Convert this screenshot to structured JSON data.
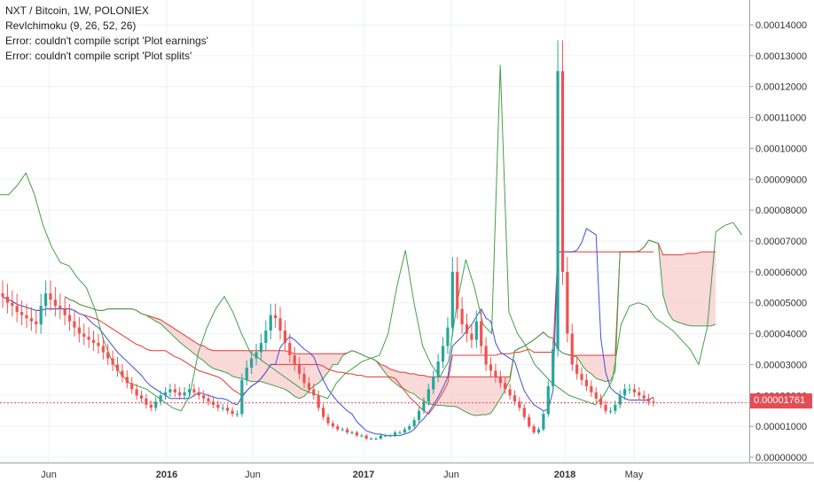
{
  "legend": {
    "title": "NXT / Bitcoin, 1W, POLONIEX",
    "indicator": "RevIchimoku (9, 26, 52, 26)",
    "error1": "Error: couldn't compile script 'Plot earnings'",
    "error2": "Error: couldn't compile script 'Plot splits'"
  },
  "last_price": "0.00001761",
  "colors": {
    "up": "#26a69a",
    "down": "#ef5350",
    "conversion": "#3f51d9",
    "base": "#e53935",
    "lagging": "#43a047",
    "cloud_bear": "#f8cccc",
    "cloud_bull": "#c8e6c9",
    "grid": "#eef0f3"
  },
  "chart_data": {
    "type": "candlestick",
    "symbol": "NXT / Bitcoin",
    "interval": "1W",
    "exchange": "POLONIEX",
    "x_labels": [
      "Jun",
      "2016",
      "Jun",
      "2017",
      "Jun",
      "2018",
      "May"
    ],
    "y_ticks": [
      "0.00014000",
      "0.00013000",
      "0.00012000",
      "0.00011000",
      "0.00010000",
      "0.00009000",
      "0.00008000",
      "0.00007000",
      "0.00006000",
      "0.00005000",
      "0.00004000",
      "0.00003000",
      "0.00002000",
      "0.00001000",
      "0.00000000"
    ],
    "ylim": [
      0,
      0.000145
    ],
    "last_price": 1.761e-05,
    "close_series": [
      5.2e-05,
      5e-05,
      4.9e-05,
      4.7e-05,
      4.6e-05,
      4.5e-05,
      4.4e-05,
      4.3e-05,
      4.9e-05,
      5.3e-05,
      5.1e-05,
      4.9e-05,
      4.8e-05,
      4.6e-05,
      4.4e-05,
      4.2e-05,
      4e-05,
      3.9e-05,
      3.8e-05,
      3.7e-05,
      3.6e-05,
      3.4e-05,
      3.2e-05,
      3e-05,
      2.8e-05,
      2.6e-05,
      2.4e-05,
      2.2e-05,
      2e-05,
      1.9e-05,
      1.7e-05,
      1.6e-05,
      1.8e-05,
      2e-05,
      2.1e-05,
      2.2e-05,
      2.1e-05,
      2e-05,
      2.1e-05,
      2.2e-05,
      2.1e-05,
      2e-05,
      1.9e-05,
      1.8e-05,
      1.7e-05,
      1.6e-05,
      1.6e-05,
      1.5e-05,
      1.4e-05,
      1.4e-05,
      2.5e-05,
      2.9e-05,
      3.2e-05,
      3.4e-05,
      3.7e-05,
      4.1e-05,
      4.6e-05,
      4.5e-05,
      4.1e-05,
      3.7e-05,
      3.3e-05,
      3e-05,
      2.7e-05,
      2.4e-05,
      2.2e-05,
      2e-05,
      1.6e-05,
      1.3e-05,
      1.1e-05,
      1e-05,
      9e-06,
      9e-06,
      8e-06,
      8e-06,
      7e-06,
      7e-06,
      6e-06,
      6e-06,
      6e-06,
      7e-06,
      7e-06,
      7e-06,
      8e-06,
      8e-06,
      9e-06,
      1e-05,
      1.2e-05,
      1.5e-05,
      1.8e-05,
      2.2e-05,
      2.6e-05,
      3.1e-05,
      3.6e-05,
      4.2e-05,
      6e-05,
      4.8e-05,
      4.3e-05,
      4e-05,
      3.8e-05,
      4.4e-05,
      3.6e-05,
      3e-05,
      2.8e-05,
      2.6e-05,
      2.4e-05,
      2.2e-05,
      2e-05,
      1.8e-05,
      1.6e-05,
      1.3e-05,
      1e-05,
      8e-06,
      9e-06,
      1.4e-05,
      2.3e-05,
      3.5e-05,
      0.000125,
      6e-05,
      4e-05,
      3e-05,
      2.7e-05,
      2.5e-05,
      2.3e-05,
      2.1e-05,
      1.9e-05,
      1.7e-05,
      1.5e-05,
      1.5e-05,
      1.7e-05,
      2e-05,
      2.2e-05,
      2.2e-05,
      2.1e-05,
      2e-05,
      1.9e-05,
      1.8e-05,
      1.76e-05
    ],
    "lagging_span": [
      8.5e-05,
      8.5e-05,
      8.8e-05,
      9.2e-05,
      8.5e-05,
      7.5e-05,
      6.8e-05,
      6.3e-05,
      6.2e-05,
      5.8e-05,
      5.5e-05,
      4.8e-05,
      3.8e-05,
      3.1e-05,
      2.7e-05,
      2.4e-05,
      2.3e-05,
      2.2e-05,
      2e-05,
      1.8e-05,
      1.6e-05,
      1.5e-05,
      2e-05,
      3.4e-05,
      4.2e-05,
      4.8e-05,
      5.2e-05,
      4.7e-05,
      4e-05,
      3.4e-05,
      3.2e-05,
      3e-05,
      2.8e-05,
      2.6e-05,
      2.4e-05,
      2.2e-05,
      2.1e-05,
      2e-05,
      1.9e-05,
      2.4e-05,
      2.7e-05,
      2.9e-05,
      3.1e-05,
      3.2e-05,
      3.3e-05,
      4e-05,
      5.5e-05,
      6.7e-05,
      5e-05,
      3.6e-05,
      3e-05,
      2.6e-05,
      3.1e-05,
      5e-05,
      6.4e-05,
      5.5e-05,
      4.3e-05,
      4e-05,
      0.000127,
      4.7e-05,
      4e-05,
      3.6e-05,
      3e-05,
      2.7e-05,
      2.4e-05,
      2.2e-05,
      2e-05,
      1.9e-05,
      1.8e-05,
      1.7e-05,
      2e-05,
      2.5e-05,
      4.3e-05,
      4.9e-05,
      5e-05,
      4.9e-05,
      4.5e-05,
      4.3e-05,
      4.1e-05,
      3.8e-05,
      3.5e-05,
      3e-05,
      4.2e-05,
      7.3e-05,
      7.5e-05,
      7.6e-05,
      7.2e-05
    ],
    "cloud_note": "Ichimoku cloud spans shown shaded; mostly bearish (red) with bullish (green) segments"
  }
}
